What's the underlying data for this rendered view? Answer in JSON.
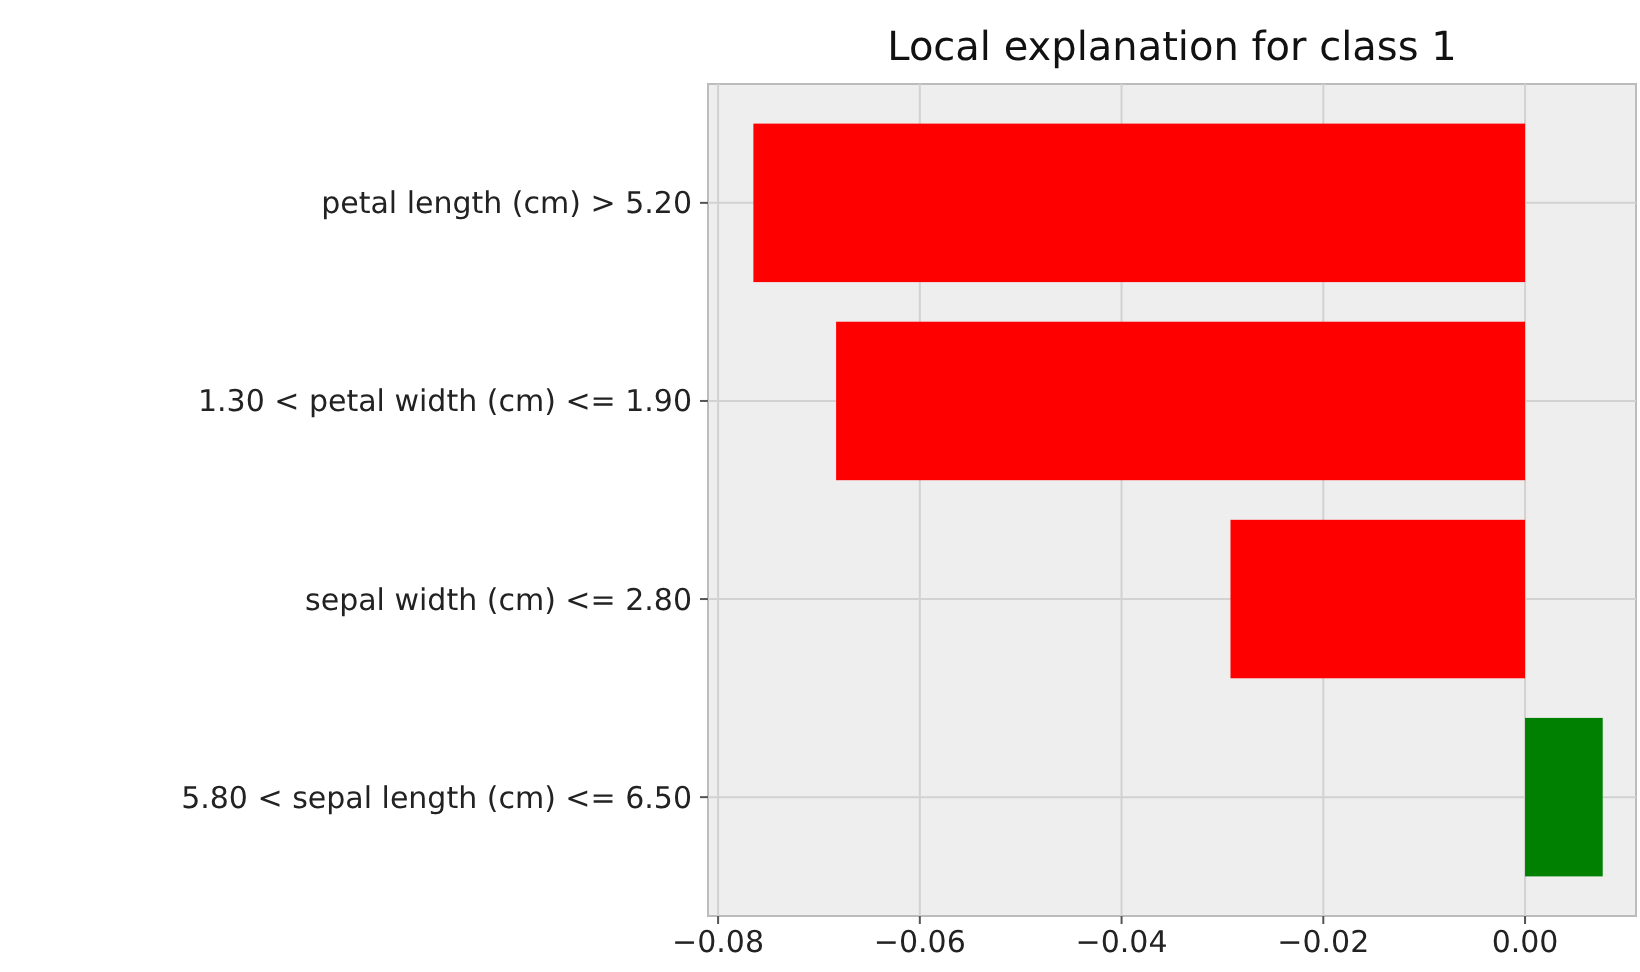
{
  "chart_data": {
    "type": "bar",
    "orientation": "horizontal",
    "title": "Local explanation for class 1",
    "categories": [
      "petal length (cm) > 5.20",
      "1.30 < petal width (cm) <= 1.90",
      "sepal width (cm) <= 2.80",
      "5.80 < sepal length (cm) <= 6.50"
    ],
    "values": [
      -0.0765,
      -0.0683,
      -0.0292,
      0.0077
    ],
    "colors": [
      "#ff0000",
      "#ff0000",
      "#ff0000",
      "#008000"
    ],
    "xlim": [
      -0.081,
      0.011
    ],
    "xticks": [
      {
        "value": -0.08,
        "label": "−0.08"
      },
      {
        "value": -0.06,
        "label": "−0.06"
      },
      {
        "value": -0.04,
        "label": "−0.04"
      },
      {
        "value": -0.02,
        "label": "−0.02"
      },
      {
        "value": 0,
        "label": "0.00"
      }
    ],
    "grid": true
  }
}
